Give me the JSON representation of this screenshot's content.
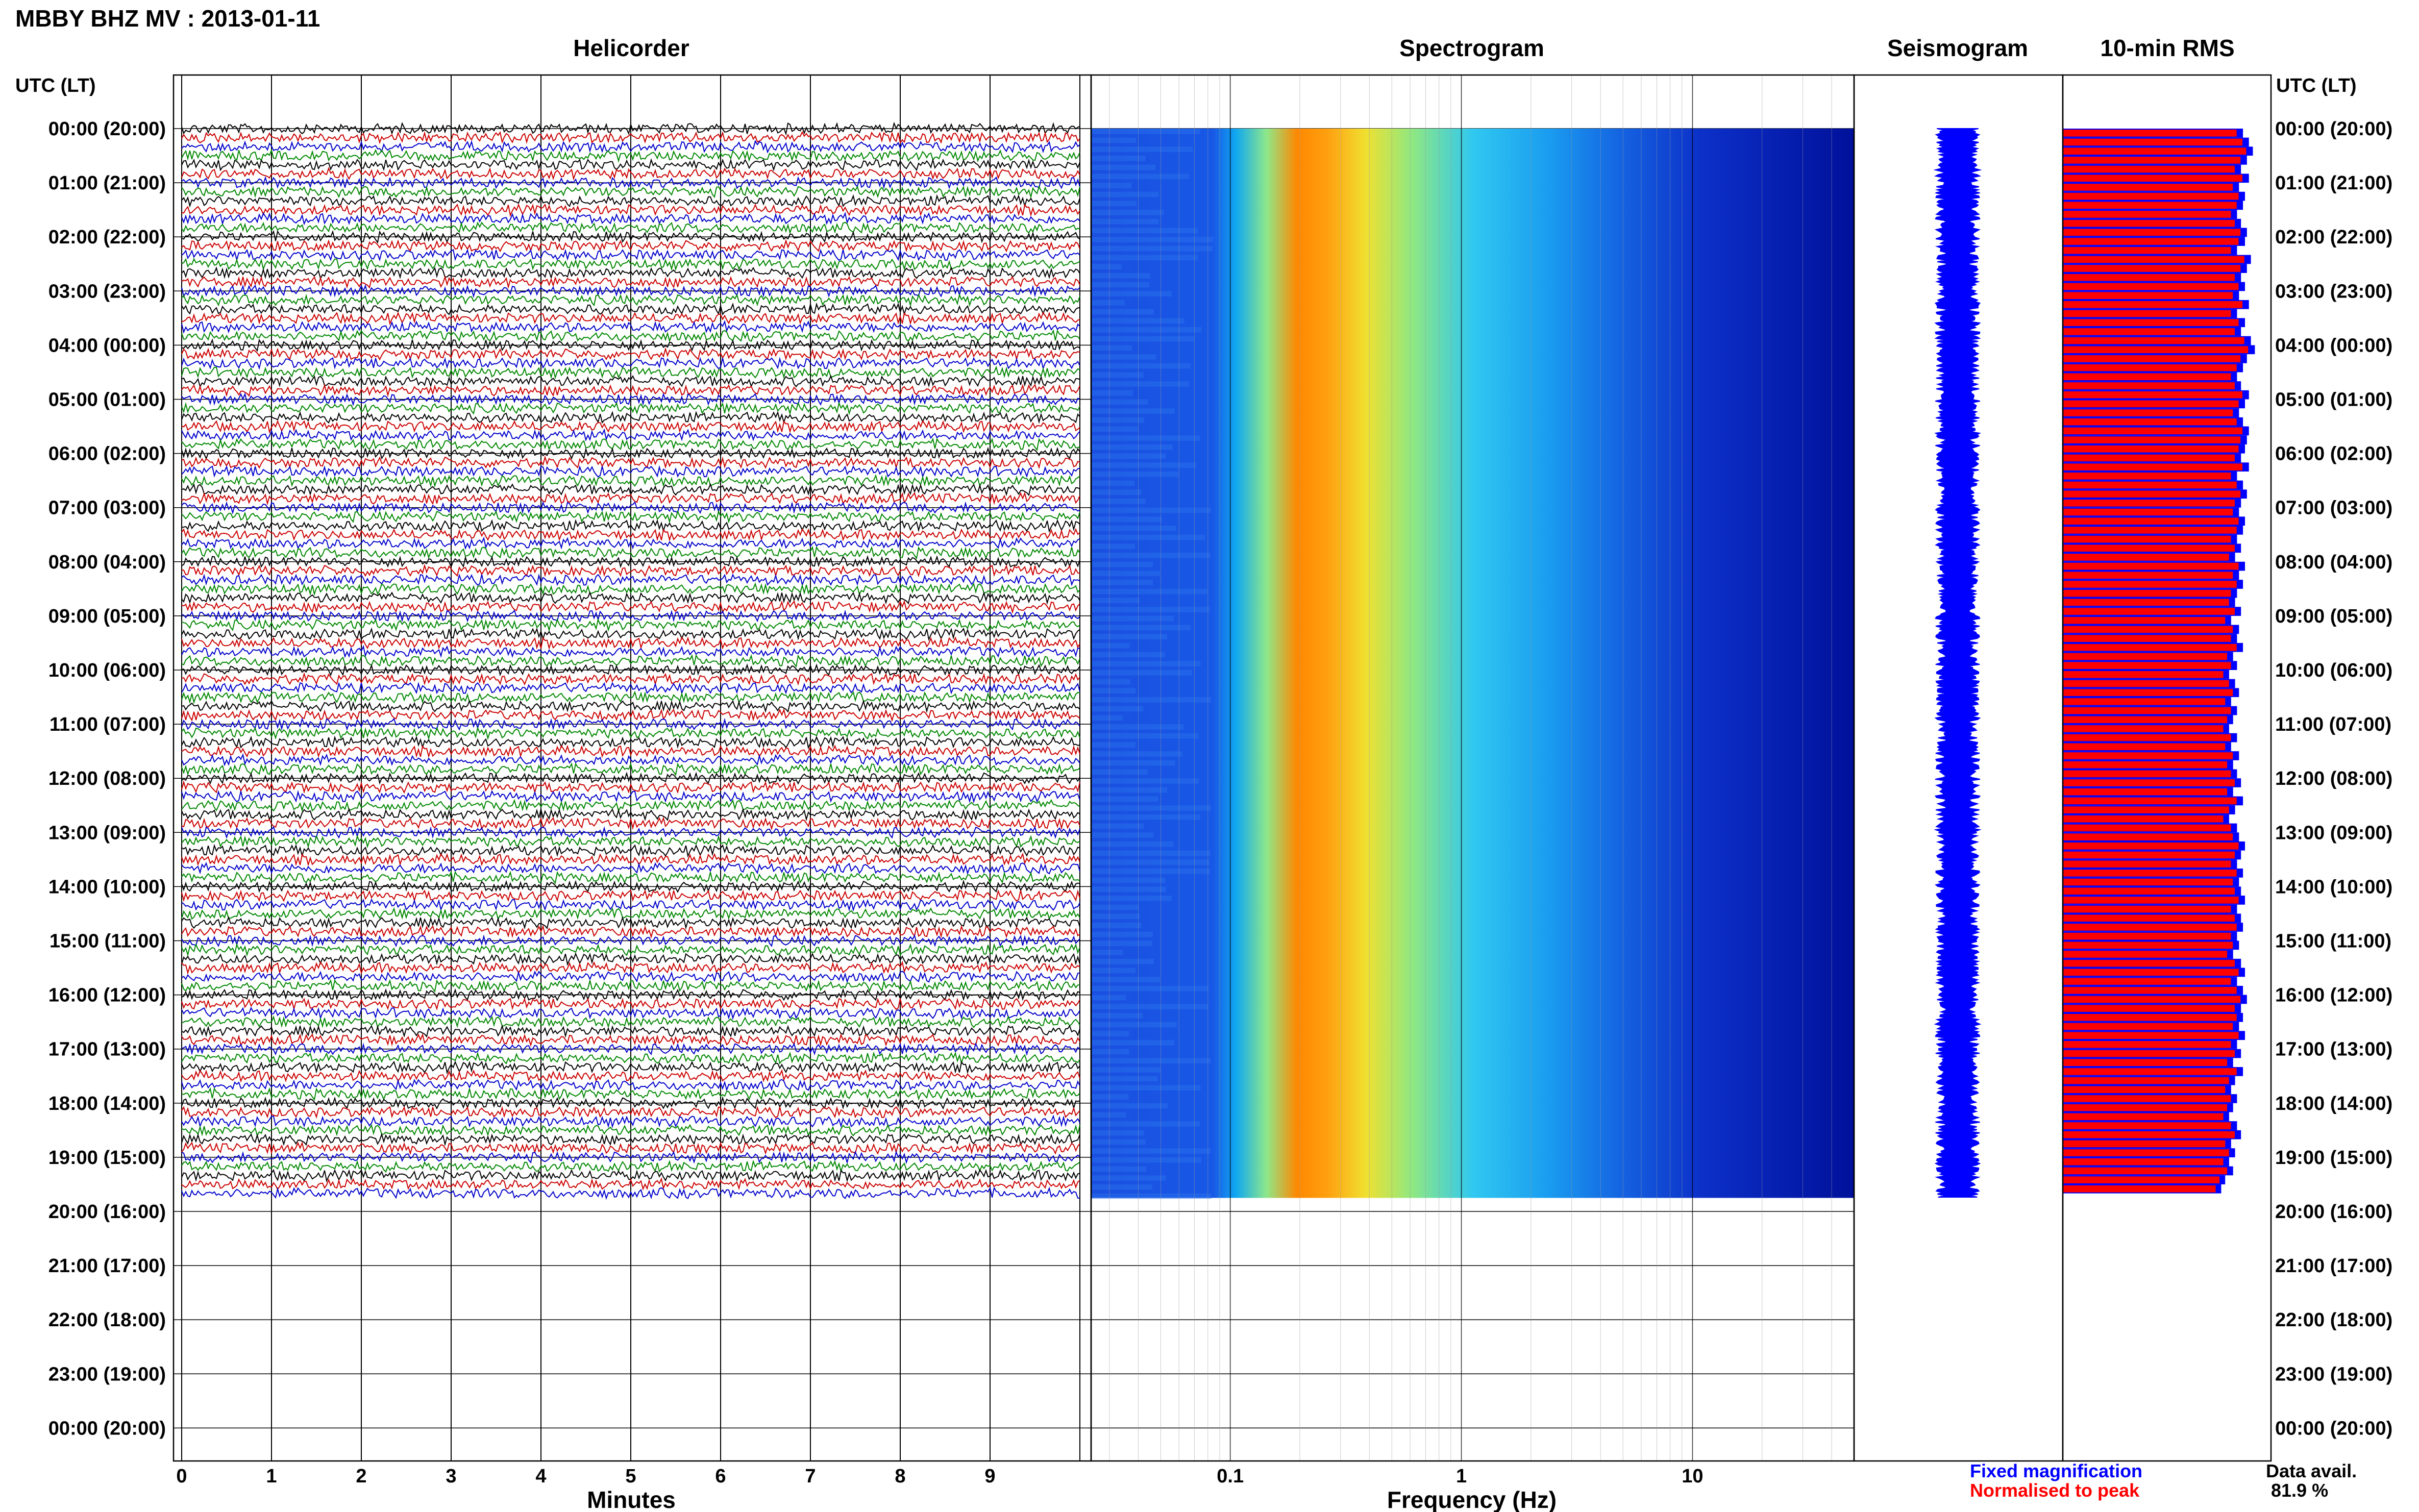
{
  "header": {
    "title": "MBBY BHZ MV : 2013-01-11",
    "utc_label": "UTC (LT)",
    "utc_label_right": "UTC (LT)"
  },
  "panels": {
    "helicorder_title": "Helicorder",
    "spectrogram_title": "Spectrogram",
    "seismogram_title": "Seismogram",
    "rms_title": "10-min RMS"
  },
  "legend": {
    "fixed": "Fixed magnification",
    "normalised": "Normalised to peak",
    "fixed_color": "#0000ff",
    "normalised_color": "#ff0000",
    "avail_label": "Data avail.",
    "avail_value": "81.9 %"
  },
  "chart_data": [
    {
      "type": "line",
      "name": "helicorder",
      "title": "Helicorder",
      "xlabel": "Minutes",
      "x_ticks": [
        "0",
        "1",
        "2",
        "3",
        "4",
        "5",
        "6",
        "7",
        "8",
        "9"
      ],
      "xlim": [
        0,
        10
      ],
      "time_labels": [
        "00:00 (20:00)",
        "01:00 (21:00)",
        "02:00 (22:00)",
        "03:00 (23:00)",
        "04:00 (00:00)",
        "05:00 (01:00)",
        "06:00 (02:00)",
        "07:00 (03:00)",
        "08:00 (04:00)",
        "09:00 (05:00)",
        "10:00 (06:00)",
        "11:00 (07:00)",
        "12:00 (08:00)",
        "13:00 (09:00)",
        "14:00 (10:00)",
        "15:00 (11:00)",
        "16:00 (12:00)",
        "17:00 (13:00)",
        "18:00 (14:00)",
        "19:00 (15:00)",
        "20:00 (16:00)",
        "21:00 (17:00)",
        "22:00 (18:00)",
        "23:00 (19:00)",
        "00:00 (20:00)"
      ],
      "trace_colors": [
        "#000000",
        "#cc0000",
        "#0000cc",
        "#008800"
      ],
      "lines_per_hour": 6,
      "data_hours": 19.75
    },
    {
      "type": "heatmap",
      "name": "spectrogram",
      "title": "Spectrogram",
      "xlabel": "Frequency (Hz)",
      "x_scale": "log",
      "x_ticks": [
        "0.1",
        "1",
        "10"
      ],
      "xlim": [
        0.025,
        50
      ],
      "dominant_band_hz": [
        0.2,
        0.5
      ],
      "data_hours": 19.75
    },
    {
      "type": "line",
      "name": "seismogram",
      "title": "Seismogram",
      "color": "#0000ff",
      "data_hours": 19.75
    },
    {
      "type": "bar",
      "name": "rms",
      "title": "10-min RMS",
      "series": [
        {
          "name": "Fixed magnification",
          "color": "#0000ff"
        },
        {
          "name": "Normalised to peak",
          "color": "#ff0000"
        }
      ],
      "values": [
        0.91,
        0.94,
        0.96,
        0.93,
        0.9,
        0.94,
        0.89,
        0.92,
        0.91,
        0.88,
        0.9,
        0.93,
        0.92,
        0.88,
        0.95,
        0.93,
        0.9,
        0.92,
        0.89,
        0.94,
        0.88,
        0.92,
        0.9,
        0.95,
        0.97,
        0.93,
        0.91,
        0.88,
        0.9,
        0.94,
        0.92,
        0.89,
        0.91,
        0.94,
        0.93,
        0.92,
        0.9,
        0.94,
        0.88,
        0.91,
        0.93,
        0.9,
        0.89,
        0.92,
        0.91,
        0.88,
        0.9,
        0.87,
        0.92,
        0.89,
        0.91,
        0.88,
        0.87,
        0.9,
        0.85,
        0.89,
        0.88,
        0.91,
        0.86,
        0.88,
        0.84,
        0.87,
        0.89,
        0.85,
        0.88,
        0.86,
        0.84,
        0.88,
        0.85,
        0.89,
        0.86,
        0.88,
        0.9,
        0.86,
        0.91,
        0.87,
        0.84,
        0.88,
        0.89,
        0.92,
        0.9,
        0.88,
        0.91,
        0.89,
        0.9,
        0.92,
        0.88,
        0.9,
        0.91,
        0.88,
        0.89,
        0.86,
        0.9,
        0.92,
        0.88,
        0.91,
        0.93,
        0.9,
        0.91,
        0.89,
        0.92,
        0.88,
        0.9,
        0.86,
        0.91,
        0.87,
        0.85,
        0.88,
        0.86,
        0.84,
        0.88,
        0.9,
        0.85,
        0.87,
        0.84,
        0.86,
        0.82,
        0.8
      ]
    }
  ]
}
